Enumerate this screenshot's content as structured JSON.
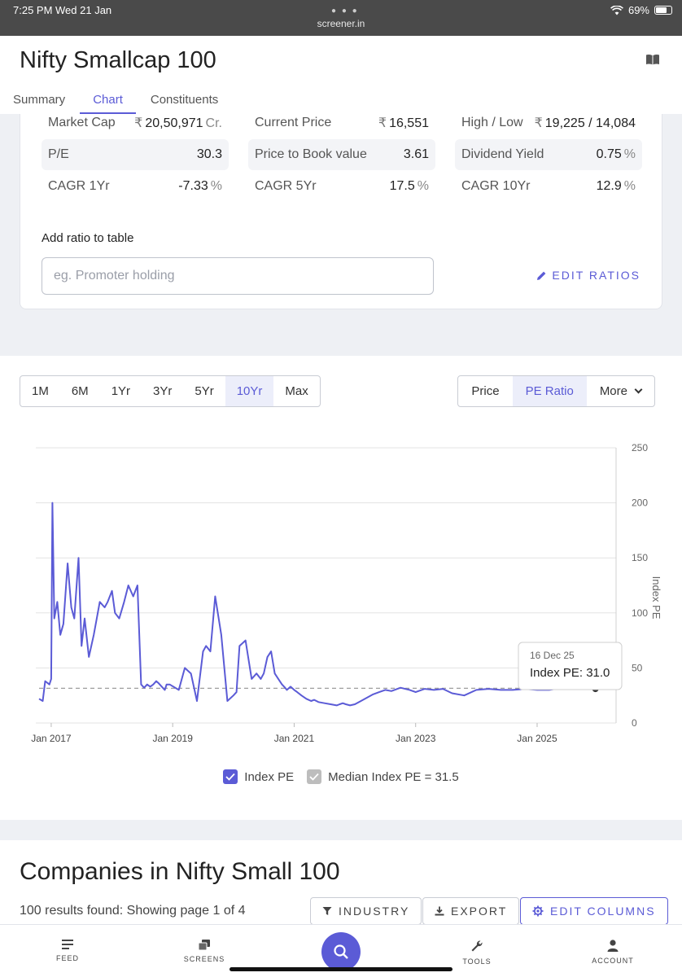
{
  "status_bar": {
    "time": "7:25 PM  Wed 21 Jan",
    "url": "screener.in",
    "battery": "69%"
  },
  "header": {
    "title": "Nifty Smallcap 100",
    "tabs": [
      "Summary",
      "Chart",
      "Constituents"
    ],
    "active_tab": "Chart"
  },
  "ratios": {
    "currency_symbol": "₹",
    "market_cap": {
      "label": "Market Cap",
      "value": "20,50,971",
      "unit": "Cr."
    },
    "current_price": {
      "label": "Current Price",
      "value": "16,551"
    },
    "high_low": {
      "label": "High / Low",
      "value": "19,225 / 14,084"
    },
    "pe": {
      "label": "P/E",
      "value": "30.3"
    },
    "price_to_book": {
      "label": "Price to Book value",
      "value": "3.61"
    },
    "dividend_yield": {
      "label": "Dividend Yield",
      "value": "0.75",
      "unit": "%"
    },
    "cagr_1yr": {
      "label": "CAGR 1Yr",
      "value": "-7.33",
      "unit": "%"
    },
    "cagr_5yr": {
      "label": "CAGR 5Yr",
      "value": "17.5",
      "unit": "%"
    },
    "cagr_10yr": {
      "label": "CAGR 10Yr",
      "value": "12.9",
      "unit": "%"
    },
    "add_ratio_label": "Add ratio to table",
    "add_ratio_placeholder": "eg. Promoter holding",
    "edit_ratios": "EDIT RATIOS"
  },
  "chart_controls": {
    "ranges": [
      "1M",
      "6M",
      "1Yr",
      "3Yr",
      "5Yr",
      "10Yr",
      "Max"
    ],
    "active_range": "10Yr",
    "metrics": [
      "Price",
      "PE Ratio",
      "More"
    ],
    "active_metric": "PE Ratio"
  },
  "chart_data": {
    "type": "line",
    "ylabel": "Index PE",
    "ylim": [
      0,
      250
    ],
    "y_ticks": [
      "0",
      "50",
      "100",
      "150",
      "200",
      "250"
    ],
    "x_ticks": [
      {
        "label": "Jan 2017",
        "x": 2017.0
      },
      {
        "label": "Jan 2019",
        "x": 2019.0
      },
      {
        "label": "Jan 2021",
        "x": 2021.0
      },
      {
        "label": "Jan 2023",
        "x": 2023.0
      },
      {
        "label": "Jan 2025",
        "x": 2025.0
      }
    ],
    "xlim": [
      2016.8,
      2026.3
    ],
    "grid": true,
    "legend_position": "bottom",
    "series": [
      {
        "name": "Index PE",
        "color": "#5b5bd6",
        "x": [
          2016.8,
          2016.86,
          2016.9,
          2016.97,
          2017.0,
          2017.02,
          2017.05,
          2017.1,
          2017.15,
          2017.2,
          2017.27,
          2017.33,
          2017.38,
          2017.45,
          2017.5,
          2017.55,
          2017.62,
          2017.7,
          2017.75,
          2017.8,
          2017.88,
          2017.93,
          2018.0,
          2018.05,
          2018.12,
          2018.2,
          2018.27,
          2018.35,
          2018.42,
          2018.48,
          2018.53,
          2018.58,
          2018.63,
          2018.68,
          2018.73,
          2018.77,
          2018.82,
          2018.87,
          2018.9,
          2018.95,
          2019.1,
          2019.2,
          2019.3,
          2019.4,
          2019.5,
          2019.55,
          2019.62,
          2019.7,
          2019.8,
          2019.9,
          2020.0,
          2020.05,
          2020.1,
          2020.2,
          2020.3,
          2020.38,
          2020.45,
          2020.5,
          2020.56,
          2020.62,
          2020.68,
          2020.74,
          2020.8,
          2020.85,
          2020.88,
          2020.94,
          2021.0,
          2021.05,
          2021.12,
          2021.2,
          2021.28,
          2021.33,
          2021.4,
          2021.5,
          2021.6,
          2021.7,
          2021.75,
          2021.8,
          2021.85,
          2021.92,
          2022.0,
          2022.1,
          2022.2,
          2022.3,
          2022.4,
          2022.5,
          2022.6,
          2022.75,
          2022.9,
          2023.0,
          2023.15,
          2023.3,
          2023.45,
          2023.6,
          2023.8,
          2024.0,
          2024.2,
          2024.4,
          2024.6,
          2024.8,
          2025.0,
          2025.1,
          2025.2,
          2025.3,
          2025.45,
          2025.6,
          2025.75,
          2025.96,
          2026.1,
          2026.17
        ],
        "values": [
          22,
          20,
          38,
          35,
          40,
          200,
          95,
          110,
          80,
          90,
          145,
          105,
          95,
          150,
          70,
          95,
          60,
          80,
          95,
          110,
          105,
          110,
          120,
          100,
          95,
          110,
          125,
          115,
          125,
          35,
          32,
          35,
          33,
          35,
          38,
          36,
          33,
          30,
          35,
          35,
          30,
          50,
          45,
          20,
          65,
          70,
          65,
          115,
          80,
          20,
          25,
          28,
          70,
          75,
          40,
          45,
          40,
          45,
          60,
          65,
          45,
          40,
          35,
          32,
          30,
          33,
          30,
          28,
          25,
          22,
          20,
          21,
          19,
          18,
          17,
          16,
          17,
          18,
          17,
          16,
          17,
          20,
          23,
          26,
          28,
          30,
          29,
          32,
          30,
          28,
          31,
          30,
          31,
          27,
          25,
          30,
          31,
          30,
          30,
          31,
          30,
          30,
          30,
          31,
          31,
          31,
          31,
          31,
          31,
          31
        ]
      },
      {
        "name": "Median Index PE = 31.5",
        "color": "#9e9e9e",
        "dashed": true,
        "value": 31.5
      }
    ],
    "tooltip": {
      "date": "16 Dec 25",
      "text": "Index PE: 31.0",
      "x": 2025.96,
      "y": 31.0
    }
  },
  "legend": {
    "series1": "Index PE",
    "series2": "Median Index PE = 31.5"
  },
  "companies": {
    "heading": "Companies in Nifty Small 100",
    "results": "100 results found: Showing page 1 of 4",
    "industry_btn": "INDUSTRY",
    "export_btn": "EXPORT",
    "edit_columns_btn": "EDIT COLUMNS"
  },
  "bottom_nav": {
    "feed": "FEED",
    "screens": "SCREENS",
    "tools": "TOOLS",
    "account": "ACCOUNT"
  }
}
